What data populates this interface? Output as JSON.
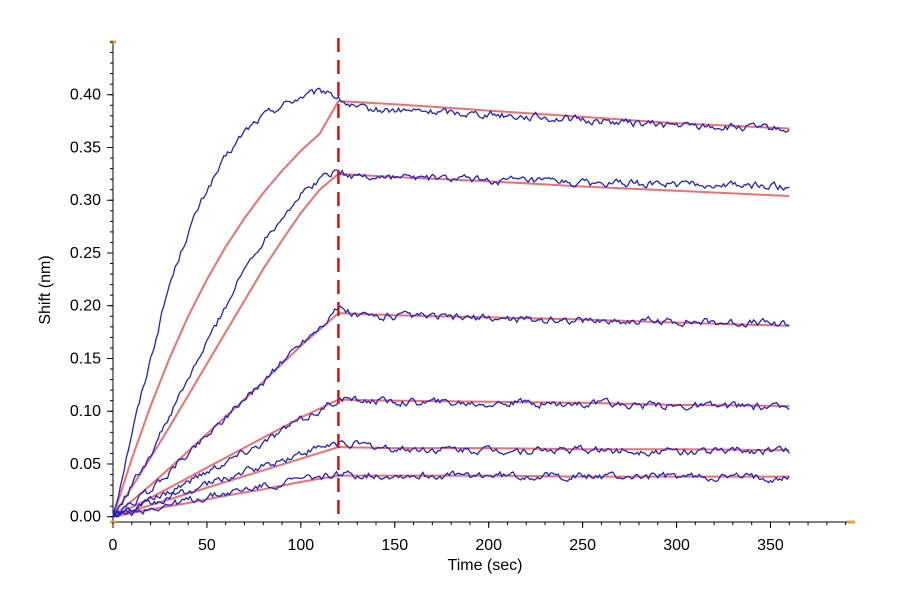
{
  "chart_data": {
    "type": "line",
    "title": "",
    "xlabel": "Time (sec)",
    "ylabel": "Shift (nm)",
    "xlim": [
      0,
      395
    ],
    "ylim": [
      -0.005,
      0.45
    ],
    "x_ticks": [
      0,
      50,
      100,
      150,
      200,
      250,
      300,
      350
    ],
    "x_tick_labels": [
      "0",
      "50",
      "100",
      "150",
      "200",
      "250",
      "300",
      "350"
    ],
    "y_ticks": [
      0.0,
      0.05,
      0.1,
      0.15,
      0.2,
      0.25,
      0.3,
      0.35,
      0.4
    ],
    "y_tick_labels": [
      "0.00",
      "0.05",
      "0.10",
      "0.15",
      "0.20",
      "0.25",
      "0.30",
      "0.35",
      "0.40"
    ],
    "dissociation_start_x": 120,
    "colors": {
      "measured": "#2222cc",
      "fit": "#f07070",
      "marker_line": "#dd1111",
      "axis_accent": "#f0a030"
    },
    "measured_curves": [
      {
        "points": [
          [
            0,
            0.0
          ],
          [
            10,
            0.08
          ],
          [
            20,
            0.15
          ],
          [
            30,
            0.22
          ],
          [
            40,
            0.27
          ],
          [
            50,
            0.31
          ],
          [
            60,
            0.34
          ],
          [
            70,
            0.365
          ],
          [
            80,
            0.38
          ],
          [
            90,
            0.39
          ],
          [
            100,
            0.398
          ],
          [
            110,
            0.402
          ],
          [
            115,
            0.404
          ],
          [
            120,
            0.396
          ],
          [
            130,
            0.386
          ],
          [
            150,
            0.385
          ],
          [
            200,
            0.382
          ],
          [
            250,
            0.376
          ],
          [
            300,
            0.371
          ],
          [
            360,
            0.367
          ]
        ]
      },
      {
        "points": [
          [
            0,
            0.0
          ],
          [
            10,
            0.03
          ],
          [
            20,
            0.06
          ],
          [
            30,
            0.095
          ],
          [
            40,
            0.13
          ],
          [
            50,
            0.165
          ],
          [
            60,
            0.2
          ],
          [
            70,
            0.235
          ],
          [
            80,
            0.262
          ],
          [
            90,
            0.285
          ],
          [
            100,
            0.305
          ],
          [
            110,
            0.32
          ],
          [
            120,
            0.33
          ],
          [
            125,
            0.323
          ],
          [
            150,
            0.322
          ],
          [
            200,
            0.319
          ],
          [
            250,
            0.316
          ],
          [
            300,
            0.315
          ],
          [
            360,
            0.313
          ]
        ]
      },
      {
        "points": [
          [
            0,
            0.0
          ],
          [
            20,
            0.025
          ],
          [
            40,
            0.06
          ],
          [
            60,
            0.095
          ],
          [
            80,
            0.128
          ],
          [
            100,
            0.165
          ],
          [
            110,
            0.18
          ],
          [
            120,
            0.198
          ],
          [
            130,
            0.19
          ],
          [
            150,
            0.19
          ],
          [
            200,
            0.188
          ],
          [
            250,
            0.186
          ],
          [
            300,
            0.185
          ],
          [
            360,
            0.183
          ]
        ]
      },
      {
        "points": [
          [
            0,
            0.0
          ],
          [
            20,
            0.015
          ],
          [
            40,
            0.033
          ],
          [
            60,
            0.052
          ],
          [
            80,
            0.07
          ],
          [
            100,
            0.092
          ],
          [
            110,
            0.1
          ],
          [
            120,
            0.111
          ],
          [
            150,
            0.109
          ],
          [
            200,
            0.108
          ],
          [
            250,
            0.107
          ],
          [
            300,
            0.105
          ],
          [
            360,
            0.104
          ]
        ]
      },
      {
        "points": [
          [
            0,
            0.0
          ],
          [
            20,
            0.012
          ],
          [
            40,
            0.024
          ],
          [
            60,
            0.037
          ],
          [
            80,
            0.048
          ],
          [
            100,
            0.06
          ],
          [
            110,
            0.065
          ],
          [
            120,
            0.07
          ],
          [
            150,
            0.064
          ],
          [
            200,
            0.063
          ],
          [
            250,
            0.063
          ],
          [
            300,
            0.062
          ],
          [
            360,
            0.063
          ]
        ]
      },
      {
        "points": [
          [
            0,
            0.0
          ],
          [
            20,
            0.008
          ],
          [
            40,
            0.015
          ],
          [
            60,
            0.022
          ],
          [
            80,
            0.029
          ],
          [
            100,
            0.035
          ],
          [
            110,
            0.038
          ],
          [
            120,
            0.04
          ],
          [
            150,
            0.039
          ],
          [
            200,
            0.039
          ],
          [
            250,
            0.038
          ],
          [
            300,
            0.038
          ],
          [
            360,
            0.037
          ]
        ]
      }
    ],
    "fit_curves": [
      {
        "points": [
          [
            0,
            0.0
          ],
          [
            10,
            0.055
          ],
          [
            20,
            0.105
          ],
          [
            30,
            0.15
          ],
          [
            40,
            0.19
          ],
          [
            50,
            0.225
          ],
          [
            60,
            0.256
          ],
          [
            70,
            0.283
          ],
          [
            80,
            0.307
          ],
          [
            90,
            0.328
          ],
          [
            100,
            0.347
          ],
          [
            110,
            0.363
          ],
          [
            120,
            0.394
          ],
          [
            150,
            0.391
          ],
          [
            200,
            0.385
          ],
          [
            250,
            0.379
          ],
          [
            300,
            0.373
          ],
          [
            360,
            0.368
          ]
        ]
      },
      {
        "points": [
          [
            0,
            0.0
          ],
          [
            10,
            0.028
          ],
          [
            20,
            0.056
          ],
          [
            30,
            0.085
          ],
          [
            40,
            0.115
          ],
          [
            50,
            0.145
          ],
          [
            60,
            0.175
          ],
          [
            70,
            0.205
          ],
          [
            80,
            0.235
          ],
          [
            90,
            0.262
          ],
          [
            100,
            0.288
          ],
          [
            110,
            0.31
          ],
          [
            120,
            0.325
          ],
          [
            150,
            0.322
          ],
          [
            200,
            0.318
          ],
          [
            250,
            0.313
          ],
          [
            300,
            0.309
          ],
          [
            360,
            0.304
          ]
        ]
      },
      {
        "points": [
          [
            0,
            0.0
          ],
          [
            20,
            0.03
          ],
          [
            40,
            0.062
          ],
          [
            60,
            0.095
          ],
          [
            80,
            0.128
          ],
          [
            100,
            0.162
          ],
          [
            120,
            0.193
          ],
          [
            150,
            0.191
          ],
          [
            200,
            0.189
          ],
          [
            250,
            0.187
          ],
          [
            300,
            0.184
          ],
          [
            360,
            0.181
          ]
        ]
      },
      {
        "points": [
          [
            0,
            0.0
          ],
          [
            20,
            0.018
          ],
          [
            40,
            0.037
          ],
          [
            60,
            0.056
          ],
          [
            80,
            0.075
          ],
          [
            100,
            0.094
          ],
          [
            120,
            0.111
          ],
          [
            150,
            0.11
          ],
          [
            200,
            0.109
          ],
          [
            250,
            0.108
          ],
          [
            300,
            0.106
          ],
          [
            360,
            0.105
          ]
        ]
      },
      {
        "points": [
          [
            0,
            0.0
          ],
          [
            20,
            0.011
          ],
          [
            40,
            0.022
          ],
          [
            60,
            0.033
          ],
          [
            80,
            0.044
          ],
          [
            100,
            0.055
          ],
          [
            120,
            0.066
          ],
          [
            150,
            0.065
          ],
          [
            200,
            0.065
          ],
          [
            250,
            0.064
          ],
          [
            300,
            0.064
          ],
          [
            360,
            0.063
          ]
        ]
      },
      {
        "points": [
          [
            0,
            0.0
          ],
          [
            20,
            0.007
          ],
          [
            40,
            0.013
          ],
          [
            60,
            0.02
          ],
          [
            80,
            0.026
          ],
          [
            100,
            0.033
          ],
          [
            120,
            0.039
          ],
          [
            150,
            0.039
          ],
          [
            200,
            0.039
          ],
          [
            250,
            0.038
          ],
          [
            300,
            0.038
          ],
          [
            360,
            0.038
          ]
        ]
      }
    ]
  }
}
